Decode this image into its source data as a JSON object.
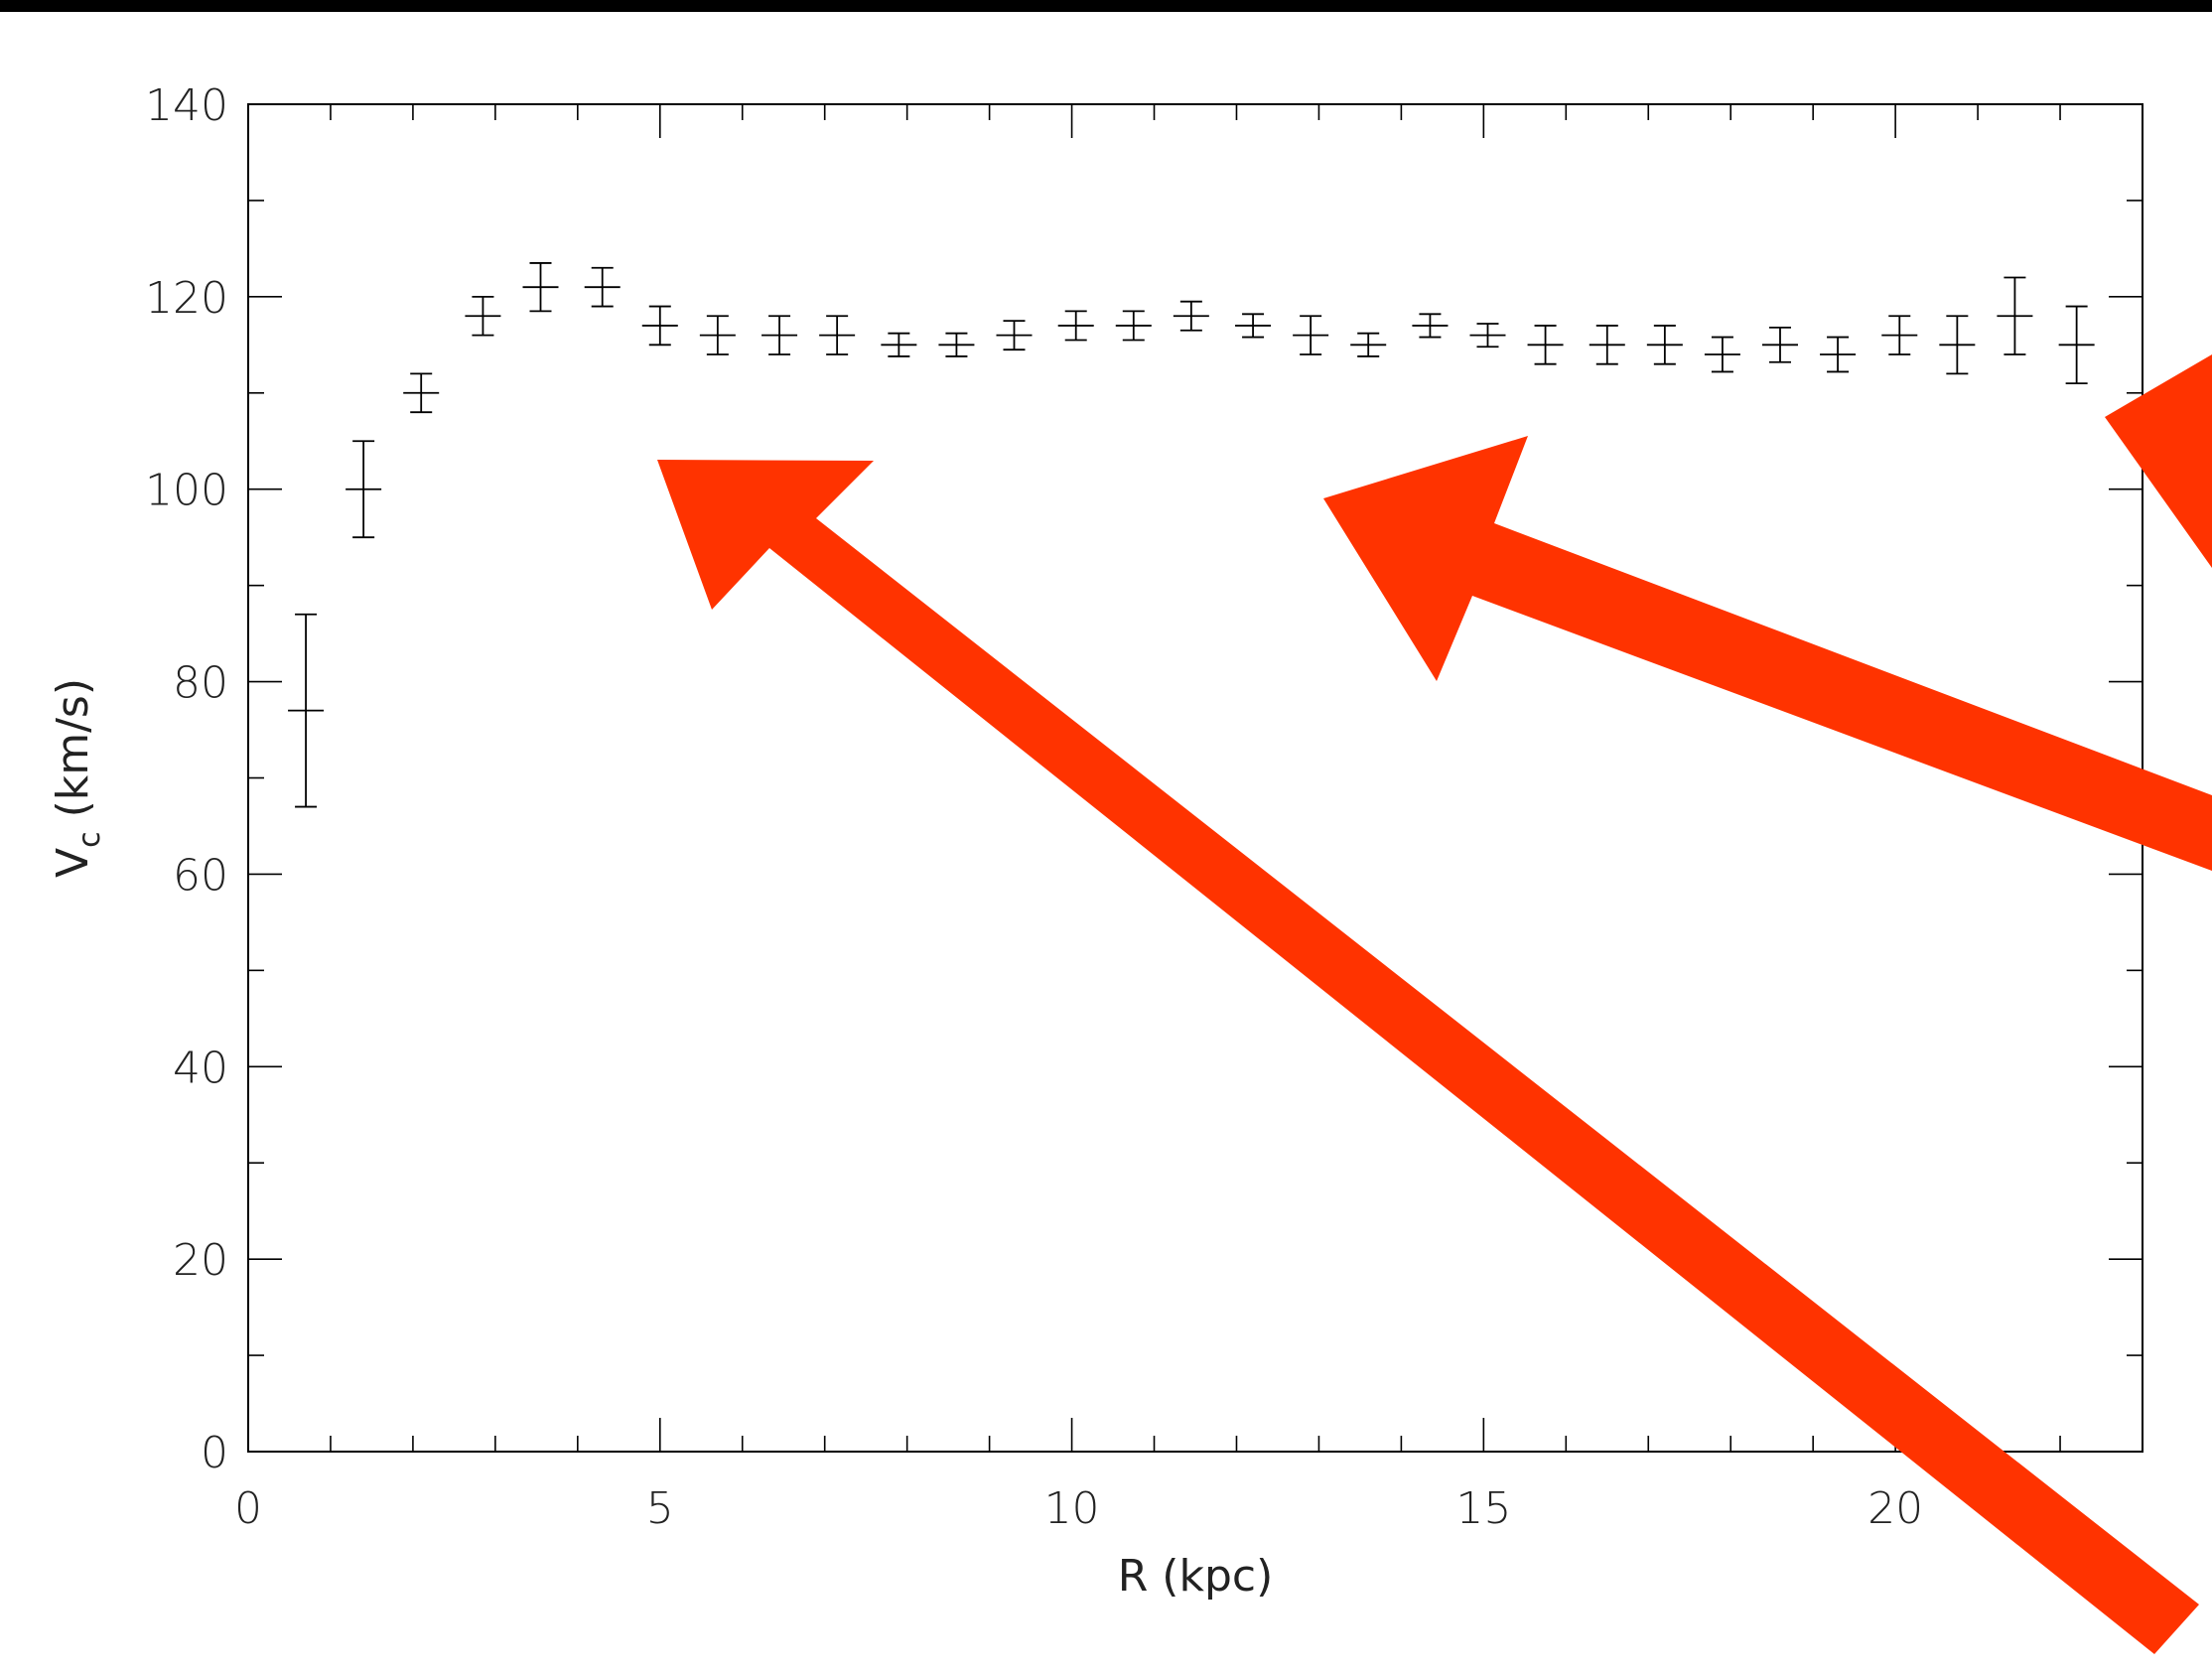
{
  "chart_data": {
    "type": "scatter",
    "title": "",
    "xlabel": "R (kpc)",
    "ylabel_main": "V",
    "ylabel_sub": "c",
    "ylabel_rest": " (km/s)",
    "xlim": [
      0,
      23
    ],
    "ylim": [
      0,
      140
    ],
    "x_ticks": [
      0,
      5,
      10,
      15,
      20
    ],
    "x_tick_labels": [
      "0",
      "5",
      "10",
      "15",
      "20"
    ],
    "y_ticks": [
      0,
      20,
      40,
      60,
      80,
      100,
      120,
      140
    ],
    "y_tick_labels": [
      "0",
      "20",
      "40",
      "60",
      "80",
      "100",
      "120",
      "140"
    ],
    "series": [
      {
        "x": [
          0.7,
          1.4,
          2.1,
          2.85,
          3.55,
          4.3,
          5.0,
          5.7,
          6.45,
          7.15,
          7.9,
          8.6,
          9.3,
          10.05,
          10.75,
          11.45,
          12.2,
          12.9,
          13.6,
          14.35,
          15.05,
          15.75,
          16.5,
          17.2,
          17.9,
          18.6,
          19.3,
          20.05,
          20.75,
          21.45,
          22.2
        ],
        "y": [
          77,
          100,
          110,
          118,
          121,
          121,
          117,
          116,
          116,
          116,
          115,
          115,
          116,
          117,
          117,
          118,
          117,
          116,
          115,
          117,
          116,
          115,
          115,
          115,
          114,
          115,
          114,
          116,
          115,
          118,
          115
        ],
        "err": [
          10,
          5,
          2,
          2,
          2.5,
          2,
          2,
          2,
          2,
          2,
          1.2,
          1.2,
          1.5,
          1.5,
          1.5,
          1.5,
          1.2,
          2,
          1.2,
          1.2,
          1.2,
          2,
          2,
          2,
          1.8,
          1.8,
          1.8,
          2,
          3,
          4,
          4
        ]
      }
    ],
    "grid": false,
    "legend": "none"
  },
  "colors": {
    "arrow": "#ff3300",
    "background": "#ffffff",
    "frame": "#000000"
  }
}
